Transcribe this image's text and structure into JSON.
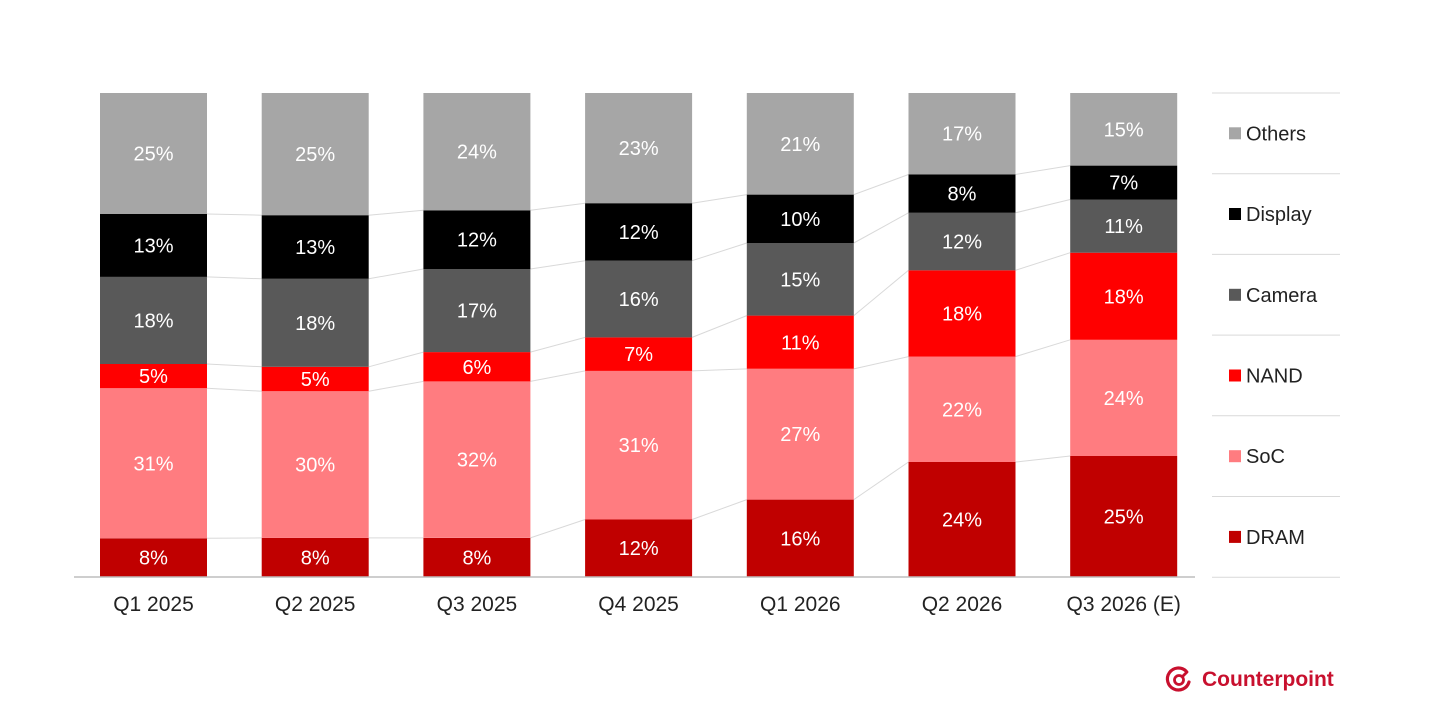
{
  "chart_data": {
    "type": "bar",
    "stacked": true,
    "percent": true,
    "categories": [
      "Q1 2025",
      "Q2 2025",
      "Q3 2025",
      "Q4 2025",
      "Q1 2026",
      "Q2 2026",
      "Q3 2026 (E)"
    ],
    "series": [
      {
        "name": "DRAM",
        "color": "#c00000",
        "label_color": "#ffffff",
        "values": [
          8,
          8,
          8,
          12,
          16,
          24,
          25
        ]
      },
      {
        "name": "SoC",
        "color": "#ff7c80",
        "label_color": "#ffffff",
        "values": [
          31,
          30,
          32,
          31,
          27,
          22,
          24
        ]
      },
      {
        "name": "NAND",
        "color": "#ff0000",
        "label_color": "#ffffff",
        "values": [
          5,
          5,
          6,
          7,
          11,
          18,
          18
        ]
      },
      {
        "name": "Camera",
        "color": "#595959",
        "label_color": "#ffffff",
        "values": [
          18,
          18,
          17,
          16,
          15,
          12,
          11
        ]
      },
      {
        "name": "Display",
        "color": "#000000",
        "label_color": "#ffffff",
        "values": [
          13,
          13,
          12,
          12,
          10,
          8,
          7
        ]
      },
      {
        "name": "Others",
        "color": "#a6a6a6",
        "label_color": "#ffffff",
        "values": [
          25,
          25,
          24,
          23,
          21,
          17,
          15
        ]
      }
    ],
    "legend_order": [
      "Others",
      "Display",
      "Camera",
      "NAND",
      "SoC",
      "DRAM"
    ],
    "legend_position": "right",
    "value_suffix": "%",
    "ylim": [
      0,
      100
    ],
    "title": "",
    "xlabel": "",
    "ylabel": "",
    "grid": false,
    "connector_lines": true
  },
  "brand": {
    "name": "Counterpoint",
    "color": "#c8102e",
    "icon": "counterpoint-logo-icon"
  }
}
